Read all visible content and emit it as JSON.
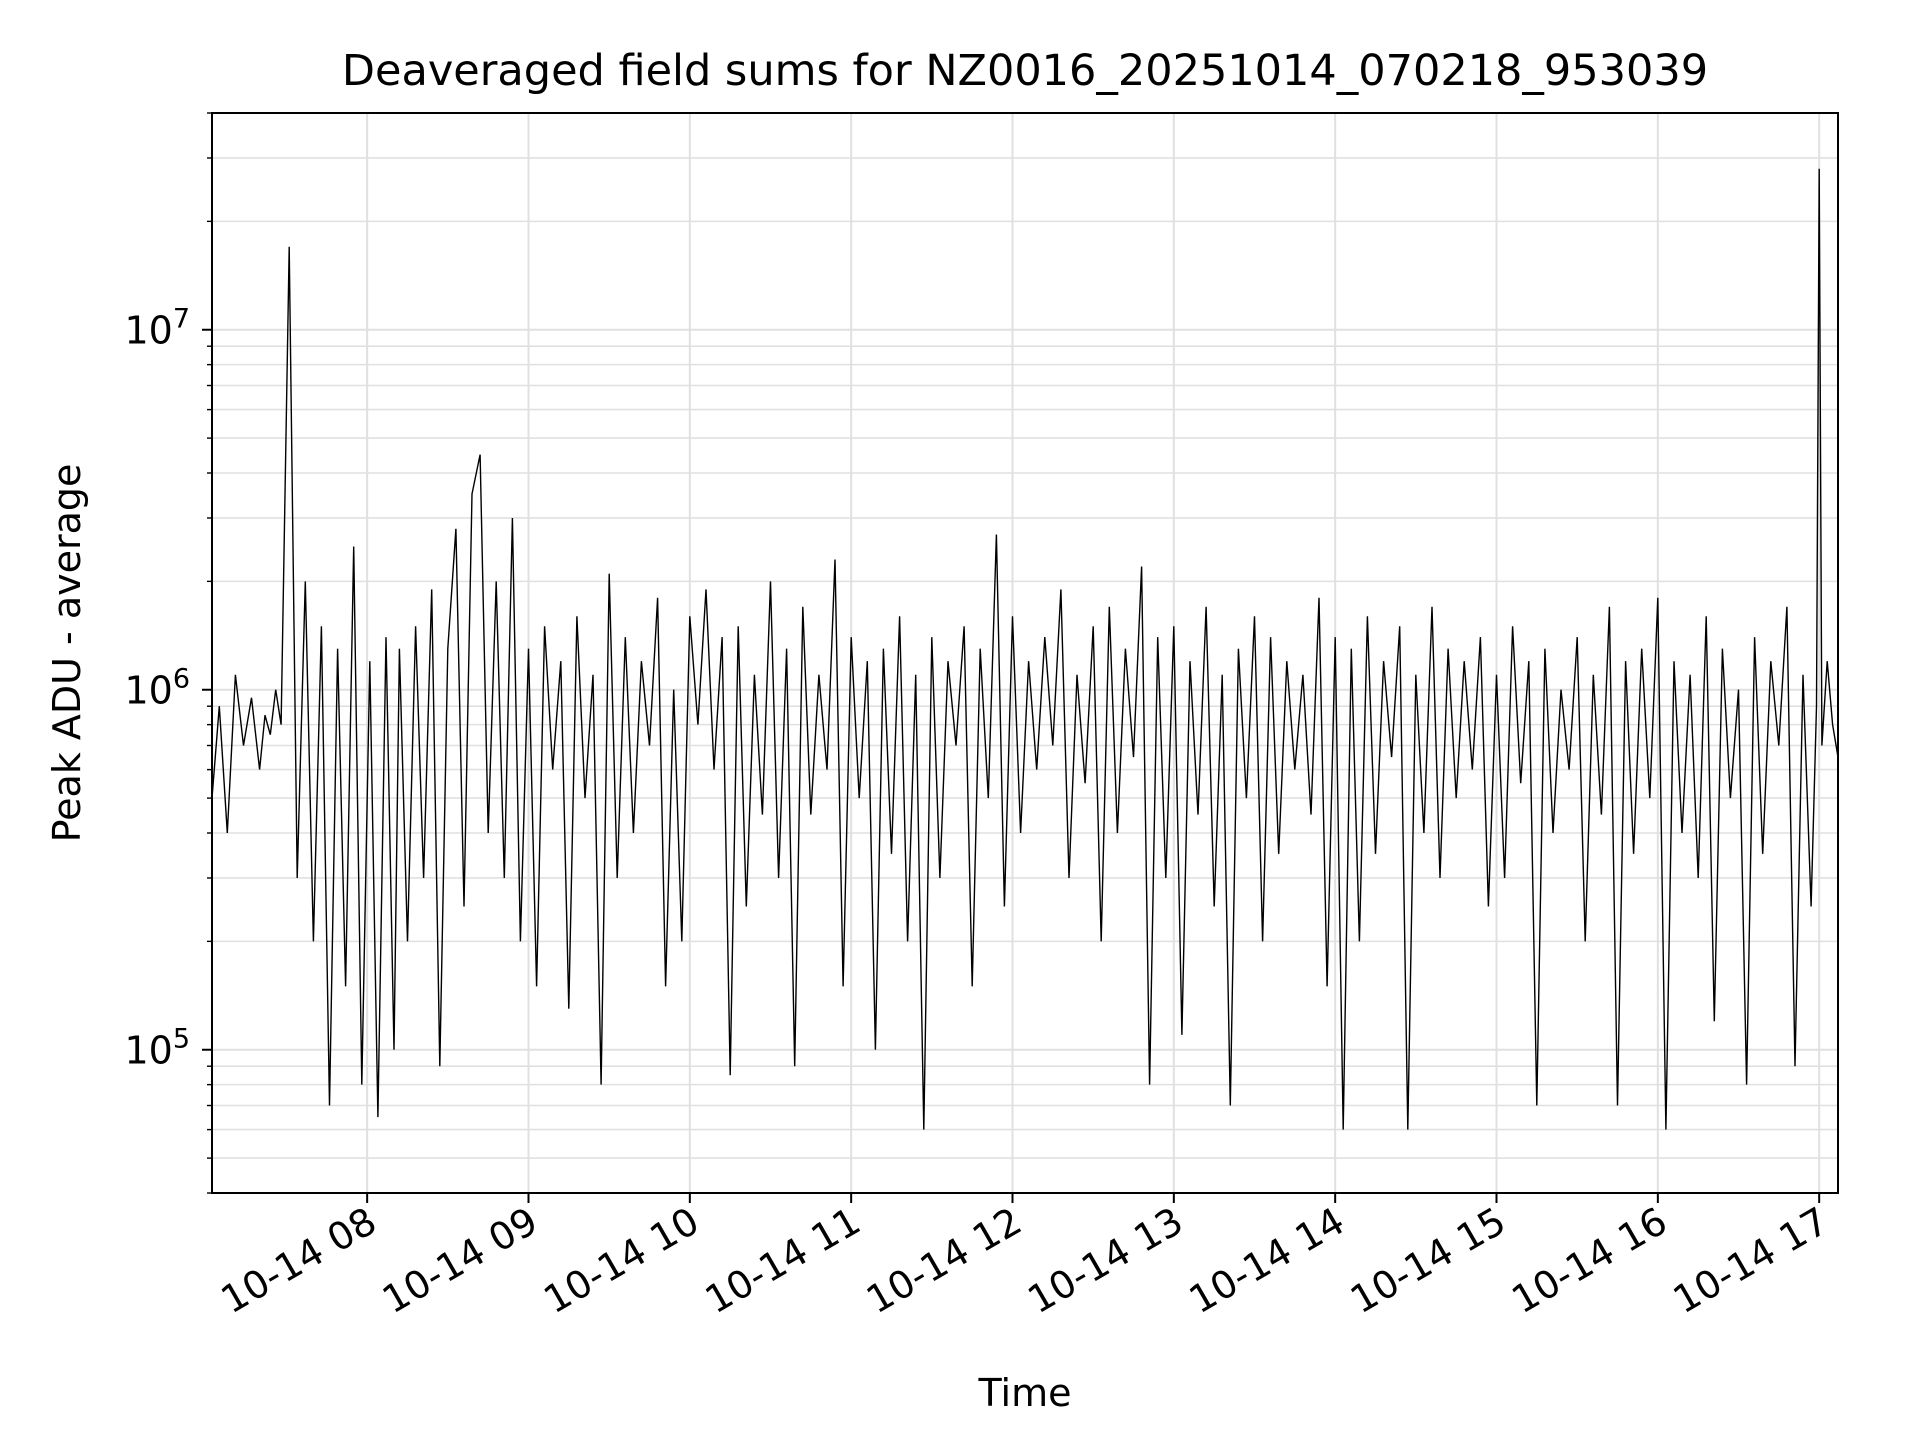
{
  "chart_data": {
    "type": "line",
    "title": "Deaveraged field sums for NZ0016_20251014_070218_953039",
    "xlabel": "Time",
    "ylabel": "Peak ADU - average",
    "y_scale": "log",
    "ylim": [
      40000,
      40000000
    ],
    "xlim": [
      "2025-10-14T07:02:18",
      "2025-10-14T17:07:00"
    ],
    "grid": true,
    "line_color": "#000000",
    "x_tick_labels": [
      {
        "t": "2025-10-14T08:00",
        "label": "10-14 08"
      },
      {
        "t": "2025-10-14T09:00",
        "label": "10-14 09"
      },
      {
        "t": "2025-10-14T10:00",
        "label": "10-14 10"
      },
      {
        "t": "2025-10-14T11:00",
        "label": "10-14 11"
      },
      {
        "t": "2025-10-14T12:00",
        "label": "10-14 12"
      },
      {
        "t": "2025-10-14T13:00",
        "label": "10-14 13"
      },
      {
        "t": "2025-10-14T14:00",
        "label": "10-14 14"
      },
      {
        "t": "2025-10-14T15:00",
        "label": "10-14 15"
      },
      {
        "t": "2025-10-14T16:00",
        "label": "10-14 16"
      },
      {
        "t": "2025-10-14T17:00",
        "label": "10-14 17"
      }
    ],
    "y_tick_labels": [
      {
        "value": 100000,
        "base": "10",
        "exp": "5"
      },
      {
        "value": 1000000,
        "base": "10",
        "exp": "6"
      },
      {
        "value": 10000000,
        "base": "10",
        "exp": "7"
      }
    ],
    "series": [
      {
        "x": [
          "2025-10-14T07:02:18",
          "2025-10-14T07:05:00",
          "2025-10-14T07:08:00",
          "2025-10-14T07:11:00",
          "2025-10-14T07:14:00",
          "2025-10-14T07:17:00",
          "2025-10-14T07:20:00",
          "2025-10-14T07:22:00",
          "2025-10-14T07:24:00",
          "2025-10-14T07:26:00",
          "2025-10-14T07:28:00",
          "2025-10-14T07:31:00",
          "2025-10-14T07:34:00",
          "2025-10-14T07:37:00",
          "2025-10-14T07:40:00",
          "2025-10-14T07:43:00",
          "2025-10-14T07:46:00",
          "2025-10-14T07:49:00",
          "2025-10-14T07:52:00",
          "2025-10-14T07:55:00",
          "2025-10-14T07:58:00",
          "2025-10-14T08:01:00",
          "2025-10-14T08:04:00",
          "2025-10-14T08:07:00",
          "2025-10-14T08:10:00",
          "2025-10-14T08:12:00",
          "2025-10-14T08:15:00",
          "2025-10-14T08:18:00",
          "2025-10-14T08:21:00",
          "2025-10-14T08:24:00",
          "2025-10-14T08:27:00",
          "2025-10-14T08:30:00",
          "2025-10-14T08:33:00",
          "2025-10-14T08:36:00",
          "2025-10-14T08:39:00",
          "2025-10-14T08:42:00",
          "2025-10-14T08:45:00",
          "2025-10-14T08:48:00",
          "2025-10-14T08:51:00",
          "2025-10-14T08:54:00",
          "2025-10-14T08:57:00",
          "2025-10-14T09:00:00",
          "2025-10-14T09:03:00",
          "2025-10-14T09:06:00",
          "2025-10-14T09:09:00",
          "2025-10-14T09:12:00",
          "2025-10-14T09:15:00",
          "2025-10-14T09:18:00",
          "2025-10-14T09:21:00",
          "2025-10-14T09:24:00",
          "2025-10-14T09:27:00",
          "2025-10-14T09:30:00",
          "2025-10-14T09:33:00",
          "2025-10-14T09:36:00",
          "2025-10-14T09:39:00",
          "2025-10-14T09:42:00",
          "2025-10-14T09:45:00",
          "2025-10-14T09:48:00",
          "2025-10-14T09:51:00",
          "2025-10-14T09:54:00",
          "2025-10-14T09:57:00",
          "2025-10-14T10:00:00",
          "2025-10-14T10:03:00",
          "2025-10-14T10:06:00",
          "2025-10-14T10:09:00",
          "2025-10-14T10:12:00",
          "2025-10-14T10:15:00",
          "2025-10-14T10:18:00",
          "2025-10-14T10:21:00",
          "2025-10-14T10:24:00",
          "2025-10-14T10:27:00",
          "2025-10-14T10:30:00",
          "2025-10-14T10:33:00",
          "2025-10-14T10:36:00",
          "2025-10-14T10:39:00",
          "2025-10-14T10:42:00",
          "2025-10-14T10:45:00",
          "2025-10-14T10:48:00",
          "2025-10-14T10:51:00",
          "2025-10-14T10:54:00",
          "2025-10-14T10:57:00",
          "2025-10-14T11:00:00",
          "2025-10-14T11:03:00",
          "2025-10-14T11:06:00",
          "2025-10-14T11:09:00",
          "2025-10-14T11:12:00",
          "2025-10-14T11:15:00",
          "2025-10-14T11:18:00",
          "2025-10-14T11:21:00",
          "2025-10-14T11:24:00",
          "2025-10-14T11:27:00",
          "2025-10-14T11:30:00",
          "2025-10-14T11:33:00",
          "2025-10-14T11:36:00",
          "2025-10-14T11:39:00",
          "2025-10-14T11:42:00",
          "2025-10-14T11:45:00",
          "2025-10-14T11:48:00",
          "2025-10-14T11:51:00",
          "2025-10-14T11:54:00",
          "2025-10-14T11:57:00",
          "2025-10-14T12:00:00",
          "2025-10-14T12:03:00",
          "2025-10-14T12:06:00",
          "2025-10-14T12:09:00",
          "2025-10-14T12:12:00",
          "2025-10-14T12:15:00",
          "2025-10-14T12:18:00",
          "2025-10-14T12:21:00",
          "2025-10-14T12:24:00",
          "2025-10-14T12:27:00",
          "2025-10-14T12:30:00",
          "2025-10-14T12:33:00",
          "2025-10-14T12:36:00",
          "2025-10-14T12:39:00",
          "2025-10-14T12:42:00",
          "2025-10-14T12:45:00",
          "2025-10-14T12:48:00",
          "2025-10-14T12:51:00",
          "2025-10-14T12:54:00",
          "2025-10-14T12:57:00",
          "2025-10-14T13:00:00",
          "2025-10-14T13:03:00",
          "2025-10-14T13:06:00",
          "2025-10-14T13:09:00",
          "2025-10-14T13:12:00",
          "2025-10-14T13:15:00",
          "2025-10-14T13:18:00",
          "2025-10-14T13:21:00",
          "2025-10-14T13:24:00",
          "2025-10-14T13:27:00",
          "2025-10-14T13:30:00",
          "2025-10-14T13:33:00",
          "2025-10-14T13:36:00",
          "2025-10-14T13:39:00",
          "2025-10-14T13:42:00",
          "2025-10-14T13:45:00",
          "2025-10-14T13:48:00",
          "2025-10-14T13:51:00",
          "2025-10-14T13:54:00",
          "2025-10-14T13:57:00",
          "2025-10-14T14:00:00",
          "2025-10-14T14:03:00",
          "2025-10-14T14:06:00",
          "2025-10-14T14:09:00",
          "2025-10-14T14:12:00",
          "2025-10-14T14:15:00",
          "2025-10-14T14:18:00",
          "2025-10-14T14:21:00",
          "2025-10-14T14:24:00",
          "2025-10-14T14:27:00",
          "2025-10-14T14:30:00",
          "2025-10-14T14:33:00",
          "2025-10-14T14:36:00",
          "2025-10-14T14:39:00",
          "2025-10-14T14:42:00",
          "2025-10-14T14:45:00",
          "2025-10-14T14:48:00",
          "2025-10-14T14:51:00",
          "2025-10-14T14:54:00",
          "2025-10-14T14:57:00",
          "2025-10-14T15:00:00",
          "2025-10-14T15:03:00",
          "2025-10-14T15:06:00",
          "2025-10-14T15:09:00",
          "2025-10-14T15:12:00",
          "2025-10-14T15:15:00",
          "2025-10-14T15:18:00",
          "2025-10-14T15:21:00",
          "2025-10-14T15:24:00",
          "2025-10-14T15:27:00",
          "2025-10-14T15:30:00",
          "2025-10-14T15:33:00",
          "2025-10-14T15:36:00",
          "2025-10-14T15:39:00",
          "2025-10-14T15:42:00",
          "2025-10-14T15:45:00",
          "2025-10-14T15:48:00",
          "2025-10-14T15:51:00",
          "2025-10-14T15:54:00",
          "2025-10-14T15:57:00",
          "2025-10-14T16:00:00",
          "2025-10-14T16:03:00",
          "2025-10-14T16:06:00",
          "2025-10-14T16:09:00",
          "2025-10-14T16:12:00",
          "2025-10-14T16:15:00",
          "2025-10-14T16:18:00",
          "2025-10-14T16:21:00",
          "2025-10-14T16:24:00",
          "2025-10-14T16:27:00",
          "2025-10-14T16:30:00",
          "2025-10-14T16:33:00",
          "2025-10-14T16:36:00",
          "2025-10-14T16:39:00",
          "2025-10-14T16:42:00",
          "2025-10-14T16:45:00",
          "2025-10-14T16:48:00",
          "2025-10-14T16:51:00",
          "2025-10-14T16:54:00",
          "2025-10-14T16:57:00",
          "2025-10-14T16:59:00",
          "2025-10-14T17:00:00",
          "2025-10-14T17:01:00",
          "2025-10-14T17:03:00",
          "2025-10-14T17:05:00",
          "2025-10-14T17:07:00"
        ],
        "y": [
          500000,
          900000,
          400000,
          1100000,
          700000,
          950000,
          600000,
          850000,
          750000,
          1000000,
          800000,
          17000000,
          300000,
          2000000,
          200000,
          1500000,
          70000,
          1300000,
          150000,
          2500000,
          80000,
          1200000,
          65000,
          1400000,
          100000,
          1300000,
          200000,
          1500000,
          300000,
          1900000,
          90000,
          1300000,
          2800000,
          250000,
          3500000,
          4500000,
          400000,
          2000000,
          300000,
          3000000,
          200000,
          1300000,
          150000,
          1500000,
          600000,
          1200000,
          130000,
          1600000,
          500000,
          1100000,
          80000,
          2100000,
          300000,
          1400000,
          400000,
          1200000,
          700000,
          1800000,
          150000,
          1000000,
          200000,
          1600000,
          800000,
          1900000,
          600000,
          1400000,
          85000,
          1500000,
          250000,
          1100000,
          450000,
          2000000,
          300000,
          1300000,
          90000,
          1700000,
          450000,
          1100000,
          600000,
          2300000,
          150000,
          1400000,
          500000,
          1200000,
          100000,
          1300000,
          350000,
          1600000,
          200000,
          1100000,
          60000,
          1400000,
          300000,
          1200000,
          700000,
          1500000,
          150000,
          1300000,
          500000,
          2700000,
          250000,
          1600000,
          400000,
          1200000,
          600000,
          1400000,
          700000,
          1900000,
          300000,
          1100000,
          550000,
          1500000,
          200000,
          1700000,
          400000,
          1300000,
          650000,
          2200000,
          80000,
          1400000,
          300000,
          1500000,
          110000,
          1200000,
          450000,
          1700000,
          250000,
          1100000,
          70000,
          1300000,
          500000,
          1600000,
          200000,
          1400000,
          350000,
          1200000,
          600000,
          1100000,
          450000,
          1800000,
          150000,
          1400000,
          60000,
          1300000,
          200000,
          1600000,
          350000,
          1200000,
          650000,
          1500000,
          60000,
          1100000,
          400000,
          1700000,
          300000,
          1300000,
          500000,
          1200000,
          600000,
          1400000,
          250000,
          1100000,
          300000,
          1500000,
          550000,
          1200000,
          70000,
          1300000,
          400000,
          1000000,
          600000,
          1400000,
          200000,
          1100000,
          450000,
          1700000,
          70000,
          1200000,
          350000,
          1300000,
          500000,
          1800000,
          60000,
          1200000,
          400000,
          1100000,
          300000,
          1600000,
          120000,
          1300000,
          500000,
          1000000,
          80000,
          1400000,
          350000,
          1200000,
          700000,
          1700000,
          90000,
          1100000,
          250000,
          900000,
          28000000,
          700000,
          1200000,
          800000,
          650000
        ]
      }
    ]
  }
}
